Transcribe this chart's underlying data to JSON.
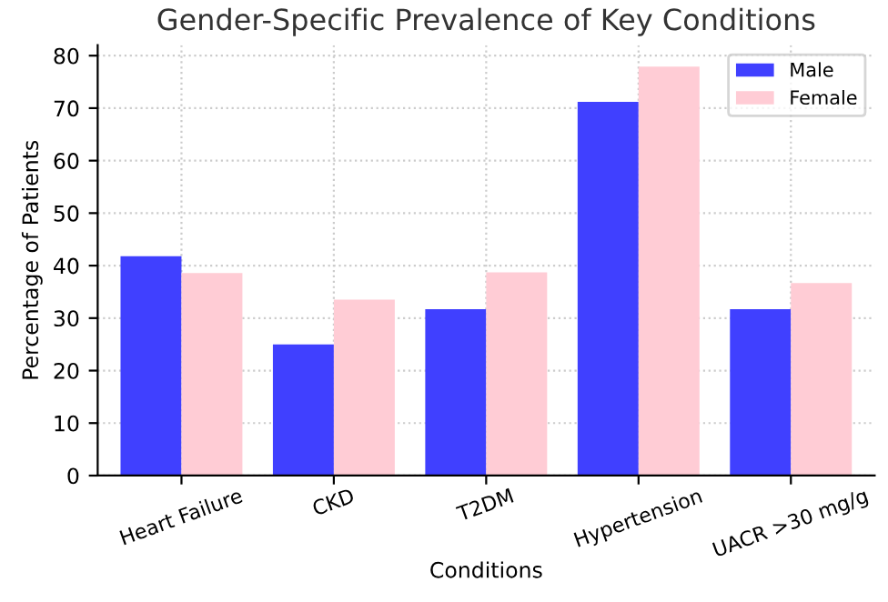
{
  "chart_data": {
    "type": "bar",
    "title": "Gender-Specific Prevalence of Key Conditions",
    "xlabel": "Conditions",
    "ylabel": "Percentage of Patients",
    "categories": [
      "Heart Failure",
      "CKD",
      "T2DM",
      "Hypertension",
      "UACR >30 mg/g"
    ],
    "series": [
      {
        "name": "Male",
        "color": "#4040ff",
        "values": [
          41.8,
          25.0,
          31.7,
          71.2,
          31.7
        ]
      },
      {
        "name": "Female",
        "color": "#ffccd5",
        "values": [
          38.6,
          33.5,
          38.7,
          77.9,
          36.7
        ]
      }
    ],
    "ylim": [
      0,
      82
    ],
    "yticks": [
      0,
      10,
      20,
      30,
      40,
      50,
      60,
      70,
      80
    ],
    "grid": true,
    "legend": "top right"
  }
}
